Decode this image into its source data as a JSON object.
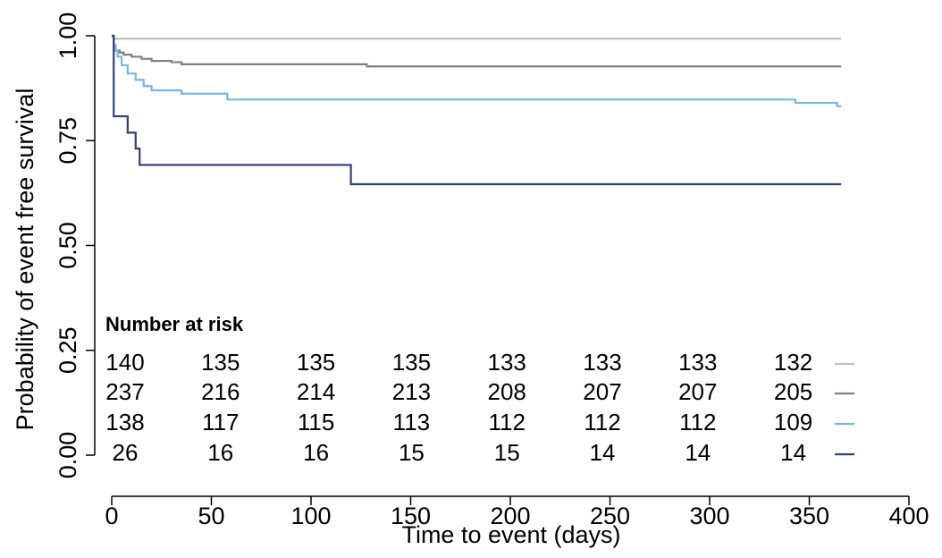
{
  "chart_data": {
    "type": "line",
    "step": "post",
    "ylabel": "Probability of event free survival",
    "xlabel": "Time to event (days)",
    "xlim": [
      0,
      400
    ],
    "xticks": [
      0,
      50,
      100,
      150,
      200,
      250,
      300,
      350,
      400
    ],
    "ylim": [
      0,
      1
    ],
    "yticks": [
      {
        "value": 0,
        "label": "0.00"
      },
      {
        "value": 0.25,
        "label": "0.25"
      },
      {
        "value": 0.5,
        "label": "0.50"
      },
      {
        "value": 0.75,
        "label": "0.75"
      },
      {
        "value": 1,
        "label": "1.00"
      }
    ],
    "series": [
      {
        "color": "#c0c0c0",
        "x": [
          0,
          1,
          366
        ],
        "values": [
          1,
          0.993,
          0.993
        ]
      },
      {
        "color": "#808080",
        "x": [
          0,
          1,
          2,
          4,
          6,
          10,
          15,
          20,
          30,
          35,
          128,
          366
        ],
        "values": [
          1,
          0.975,
          0.965,
          0.96,
          0.955,
          0.95,
          0.945,
          0.94,
          0.937,
          0.932,
          0.927,
          0.927
        ]
      },
      {
        "color": "#74b8e8",
        "x": [
          0,
          1,
          2,
          3,
          5,
          8,
          12,
          16,
          20,
          35,
          58,
          343,
          364,
          366
        ],
        "values": [
          1,
          0.978,
          0.964,
          0.95,
          0.93,
          0.91,
          0.895,
          0.88,
          0.87,
          0.862,
          0.848,
          0.84,
          0.832,
          0.832
        ]
      },
      {
        "color": "#2f4172",
        "x": [
          0,
          1,
          8,
          12,
          14,
          120,
          366
        ],
        "values": [
          1,
          0.808,
          0.769,
          0.731,
          0.692,
          0.646,
          0.646
        ]
      }
    ],
    "risk_table": {
      "title": "Number at risk",
      "rows": [
        [
          140,
          135,
          135,
          135,
          133,
          133,
          133,
          132
        ],
        [
          237,
          216,
          214,
          213,
          208,
          207,
          207,
          205
        ],
        [
          138,
          117,
          115,
          113,
          112,
          112,
          112,
          109
        ],
        [
          26,
          16,
          16,
          15,
          15,
          14,
          14,
          14
        ]
      ]
    }
  }
}
